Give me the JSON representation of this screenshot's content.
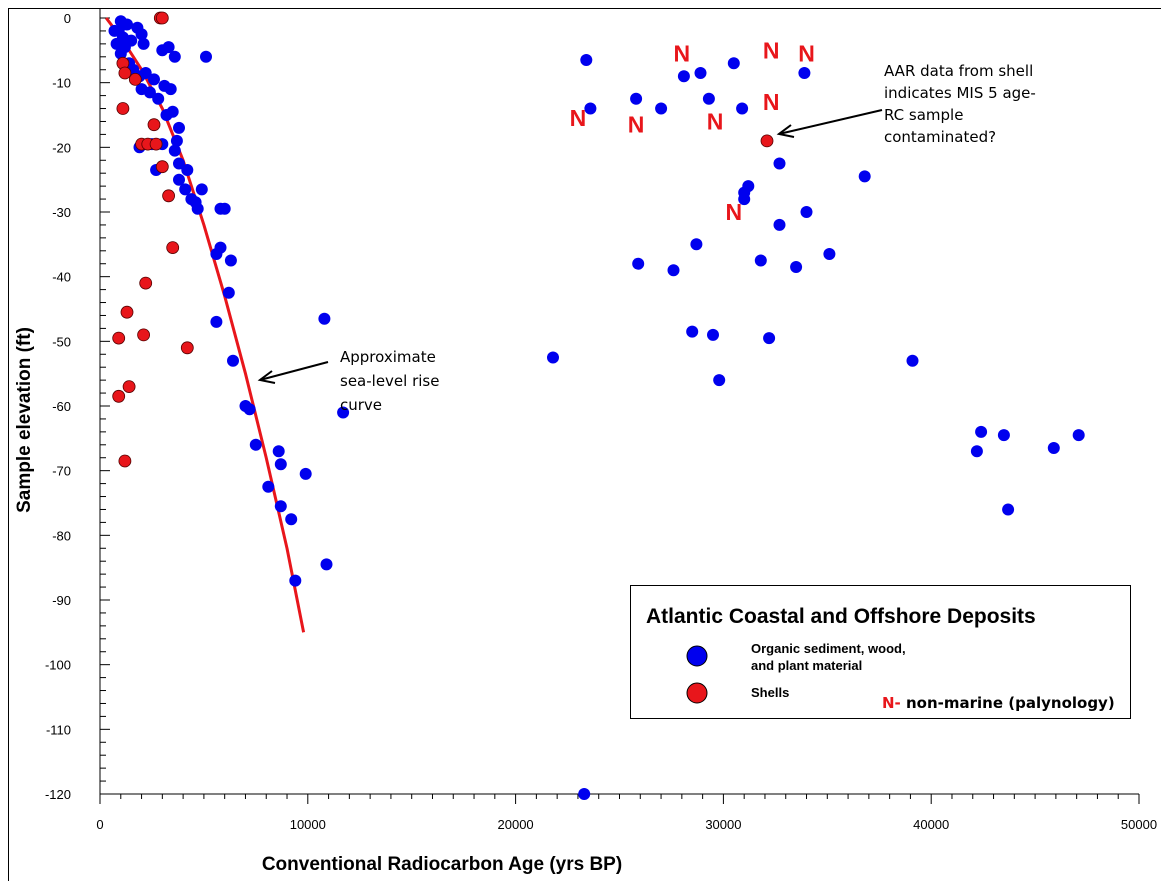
{
  "chart_data": {
    "type": "scatter",
    "xlabel": "Conventional Radiocarbon Age (yrs BP)",
    "ylabel": "Sample elevation (ft)",
    "xlim": [
      0,
      50000
    ],
    "ylim": [
      -120,
      0
    ],
    "x_ticks": [
      0,
      10000,
      20000,
      30000,
      40000,
      50000
    ],
    "y_ticks": [
      0,
      -10,
      -20,
      -30,
      -40,
      -50,
      -60,
      -70,
      -80,
      -90,
      -100,
      -110,
      -120
    ],
    "series": [
      {
        "name": "Organic sediment, wood, and plant material",
        "color": "#0000ee",
        "points": [
          [
            1000,
            -0.5
          ],
          [
            1300,
            -1
          ],
          [
            900,
            -2
          ],
          [
            1100,
            -3
          ],
          [
            1500,
            -3.5
          ],
          [
            1800,
            -1.5
          ],
          [
            2000,
            -2.5
          ],
          [
            2100,
            -4
          ],
          [
            700,
            -2
          ],
          [
            800,
            -4
          ],
          [
            1200,
            -4.5
          ],
          [
            1000,
            -5.5
          ],
          [
            1400,
            -7
          ],
          [
            1600,
            -8
          ],
          [
            1900,
            -9
          ],
          [
            2200,
            -8.5
          ],
          [
            2600,
            -9.5
          ],
          [
            2000,
            -11
          ],
          [
            2400,
            -11.5
          ],
          [
            2800,
            -12.5
          ],
          [
            3000,
            -5
          ],
          [
            3300,
            -4.5
          ],
          [
            3600,
            -6
          ],
          [
            3100,
            -10.5
          ],
          [
            3400,
            -11
          ],
          [
            3200,
            -15
          ],
          [
            3500,
            -14.5
          ],
          [
            3800,
            -17
          ],
          [
            3700,
            -19
          ],
          [
            1900,
            -20
          ],
          [
            2500,
            -19.5
          ],
          [
            3000,
            -19.5
          ],
          [
            3600,
            -20.5
          ],
          [
            3800,
            -22.5
          ],
          [
            4200,
            -23.5
          ],
          [
            2700,
            -23.5
          ],
          [
            3800,
            -25
          ],
          [
            4100,
            -26.5
          ],
          [
            4400,
            -28
          ],
          [
            4700,
            -29.5
          ],
          [
            4900,
            -26.5
          ],
          [
            4600,
            -28.5
          ],
          [
            5100,
            -6
          ],
          [
            5800,
            -29.5
          ],
          [
            6000,
            -29.5
          ],
          [
            5600,
            -36.5
          ],
          [
            5800,
            -35.5
          ],
          [
            6300,
            -37.5
          ],
          [
            6200,
            -42.5
          ],
          [
            5600,
            -47
          ],
          [
            6400,
            -53
          ],
          [
            7000,
            -60
          ],
          [
            7200,
            -60.5
          ],
          [
            7500,
            -66
          ],
          [
            8100,
            -72.5
          ],
          [
            8600,
            -67
          ],
          [
            8700,
            -69
          ],
          [
            8700,
            -75.5
          ],
          [
            9200,
            -77.5
          ],
          [
            9400,
            -87
          ],
          [
            9900,
            -70.5
          ],
          [
            10800,
            -46.5
          ],
          [
            10900,
            -84.5
          ],
          [
            11700,
            -61
          ],
          [
            21800,
            -52.5
          ],
          [
            23300,
            -120
          ],
          [
            23400,
            -6.5
          ],
          [
            23600,
            -14
          ],
          [
            25800,
            -12.5
          ],
          [
            25900,
            -38
          ],
          [
            27000,
            -14
          ],
          [
            27600,
            -39
          ],
          [
            28100,
            -9
          ],
          [
            28500,
            -48.5
          ],
          [
            28700,
            -35
          ],
          [
            28900,
            -8.5
          ],
          [
            29300,
            -12.5
          ],
          [
            29500,
            -49
          ],
          [
            29800,
            -56
          ],
          [
            30500,
            -7
          ],
          [
            30900,
            -14
          ],
          [
            31000,
            -28
          ],
          [
            31200,
            -26
          ],
          [
            31000,
            -27
          ],
          [
            31800,
            -37.5
          ],
          [
            32200,
            -49.5
          ],
          [
            32700,
            -32
          ],
          [
            32700,
            -22.5
          ],
          [
            33500,
            -38.5
          ],
          [
            33900,
            -8.5
          ],
          [
            34000,
            -30
          ],
          [
            35100,
            -36.5
          ],
          [
            36800,
            -24.5
          ],
          [
            39100,
            -53
          ],
          [
            42200,
            -67
          ],
          [
            42400,
            -64
          ],
          [
            43500,
            -64.5
          ],
          [
            43700,
            -76
          ],
          [
            45900,
            -66.5
          ],
          [
            47100,
            -64.5
          ]
        ]
      },
      {
        "name": "Shells",
        "color": "#e8161b",
        "points": [
          [
            2900,
            0
          ],
          [
            3000,
            0
          ],
          [
            1100,
            -7
          ],
          [
            1200,
            -8.5
          ],
          [
            1700,
            -9.5
          ],
          [
            1100,
            -14
          ],
          [
            2600,
            -16.5
          ],
          [
            2000,
            -19.5
          ],
          [
            2300,
            -19.5
          ],
          [
            2700,
            -19.5
          ],
          [
            3000,
            -23
          ],
          [
            3300,
            -27.5
          ],
          [
            3500,
            -35.5
          ],
          [
            2200,
            -41
          ],
          [
            1300,
            -45.5
          ],
          [
            900,
            -49.5
          ],
          [
            2100,
            -49
          ],
          [
            4200,
            -51
          ],
          [
            1400,
            -57
          ],
          [
            900,
            -58.5
          ],
          [
            1200,
            -68.5
          ],
          [
            32100,
            -19
          ]
        ]
      }
    ],
    "non_marine_marks": [
      [
        28000,
        -5.5
      ],
      [
        32300,
        -5
      ],
      [
        34000,
        -5.5
      ],
      [
        23000,
        -15.5
      ],
      [
        25800,
        -16.5
      ],
      [
        29600,
        -16
      ],
      [
        32300,
        -13
      ],
      [
        30500,
        -30
      ]
    ],
    "sea_level_curve": [
      [
        300,
        0
      ],
      [
        1000,
        -3
      ],
      [
        2000,
        -8
      ],
      [
        3000,
        -14
      ],
      [
        4000,
        -22
      ],
      [
        5000,
        -32
      ],
      [
        6000,
        -43
      ],
      [
        7000,
        -55
      ],
      [
        8000,
        -68
      ],
      [
        9000,
        -82
      ],
      [
        9800,
        -95
      ]
    ],
    "annotations": {
      "aar": [
        "AAR data from shell",
        "indicates  MIS 5 age-",
        "RC sample",
        "contaminated?"
      ],
      "curve": [
        "Approximate",
        "sea-level rise",
        "curve"
      ],
      "n_letter": "N"
    },
    "legend": {
      "title": "Atlantic Coastal and Offshore Deposits",
      "organic": [
        "Organic sediment, wood,",
        "and plant material"
      ],
      "shells": "Shells",
      "n_letter": "N-",
      "n_label": " non-marine (palynology)"
    }
  }
}
